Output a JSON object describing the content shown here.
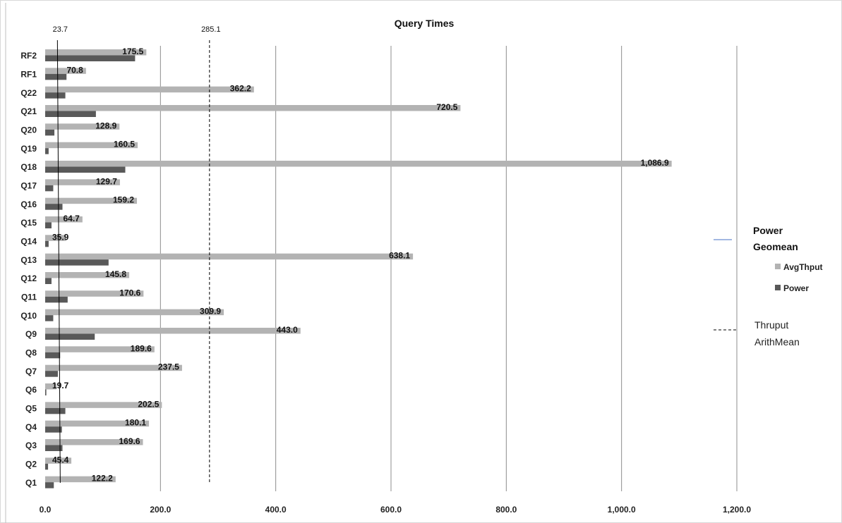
{
  "chart_data": {
    "type": "bar",
    "orientation": "horizontal",
    "title": "Query Times",
    "categories": [
      "Q1",
      "Q2",
      "Q3",
      "Q4",
      "Q5",
      "Q6",
      "Q7",
      "Q8",
      "Q9",
      "Q10",
      "Q11",
      "Q12",
      "Q13",
      "Q14",
      "Q15",
      "Q16",
      "Q17",
      "Q18",
      "Q19",
      "Q20",
      "Q21",
      "Q22",
      "RF1",
      "RF2"
    ],
    "series": [
      {
        "name": "AvgThput",
        "color": "#b3b3b3",
        "values": [
          122.2,
          45.4,
          169.6,
          180.1,
          202.5,
          19.7,
          237.5,
          189.6,
          443.0,
          309.9,
          170.6,
          145.8,
          638.1,
          35.9,
          64.7,
          159.2,
          129.7,
          1086.9,
          160.5,
          128.9,
          720.5,
          362.2,
          70.8,
          175.5
        ],
        "data_labels": [
          "122.2",
          "45.4",
          "169.6",
          "180.1",
          "202.5",
          "19.7",
          "237.5",
          "189.6",
          "443.0",
          "309.9",
          "170.6",
          "145.8",
          "638.1",
          "35.9",
          "64.7",
          "159.2",
          "129.7",
          "1,086.9",
          "160.5",
          "128.9",
          "720.5",
          "362.2",
          "70.8",
          "175.5"
        ]
      },
      {
        "name": "Power",
        "color": "#595959",
        "values": [
          15,
          5,
          30,
          29,
          35,
          2,
          22,
          26,
          86,
          14,
          39,
          11,
          110,
          6,
          11,
          30,
          14,
          139,
          6,
          16,
          88,
          35,
          37,
          156
        ]
      }
    ],
    "reference_lines": [
      {
        "name": "Power Geomean",
        "value": 23.7,
        "label": "23.7",
        "style": "solid",
        "color": "#000000",
        "legend_color": "#4472c4"
      },
      {
        "name": "Thruput ArithMean",
        "value": 285.1,
        "label": "285.1",
        "style": "dashed",
        "color": "#000000"
      }
    ],
    "xlim": [
      0,
      1200
    ],
    "xticks": [
      0,
      200,
      400,
      600,
      800,
      1000,
      1200
    ],
    "xtick_labels": [
      "0.0",
      "200.0",
      "400.0",
      "600.0",
      "800.0",
      "1,000.0",
      "1,200.0"
    ],
    "grid": "vertical",
    "legend": {
      "placement": "right",
      "entries": [
        {
          "type": "line",
          "style": "solid",
          "color": "#4472c4",
          "lines": [
            "Power",
            "Geomean"
          ],
          "bold": true
        },
        {
          "type": "swatch",
          "color": "#b3b3b3",
          "label": "AvgThput"
        },
        {
          "type": "swatch",
          "color": "#595959",
          "label": "Power"
        },
        {
          "type": "line",
          "style": "dashed",
          "color": "#000000",
          "lines": [
            "Thruput",
            "ArithMean"
          ],
          "bold": false
        }
      ]
    }
  }
}
